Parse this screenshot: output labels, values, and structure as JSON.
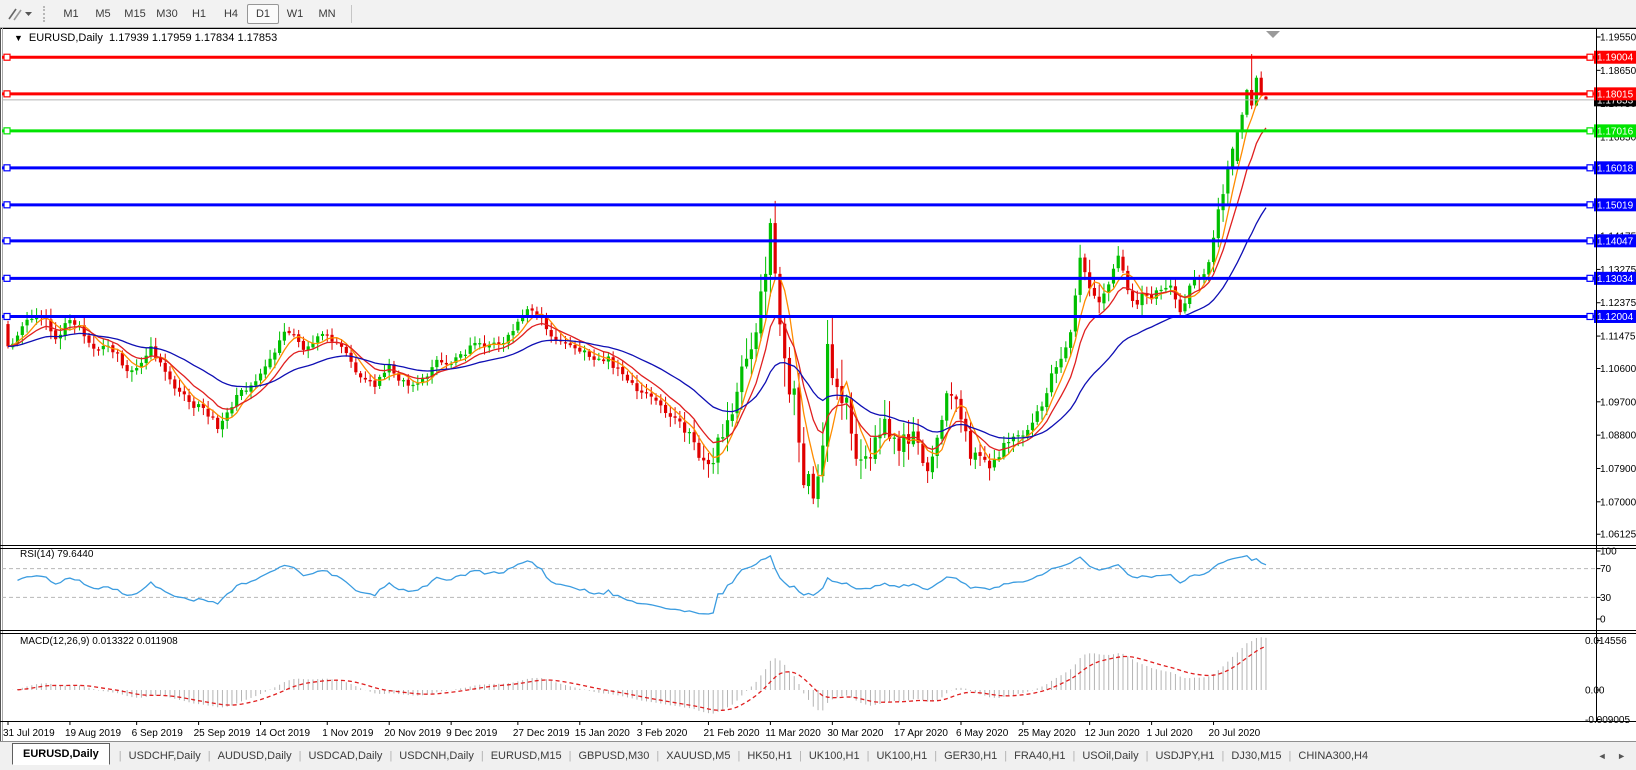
{
  "toolbar": {
    "timeframes": [
      "M1",
      "M5",
      "M15",
      "M30",
      "H1",
      "H4",
      "D1",
      "W1",
      "MN"
    ],
    "active": "D1"
  },
  "chart": {
    "title_symbol": "EURUSD,Daily",
    "title_ohlc": "1.17939 1.17959 1.17834 1.17853"
  },
  "chart_data": {
    "type": "candlestick",
    "symbol": "EURUSD",
    "timeframe": "Daily",
    "last_ohlc": {
      "open": 1.17939,
      "high": 1.17959,
      "low": 1.17834,
      "close": 1.17853
    },
    "num_candles": 265,
    "candle_up_color": "#00bf00",
    "candle_down_color": "#e00000",
    "price_axis_labels": [
      1.1955,
      1.1865,
      1.1775,
      1.1685,
      1.1595,
      1.15075,
      1.14175,
      1.13275,
      1.12375,
      1.11475,
      1.106,
      1.097,
      1.088,
      1.079,
      1.07,
      1.06125
    ],
    "horizontal_lines": [
      {
        "price": 1.19004,
        "color": "#ff0000"
      },
      {
        "price": 1.18015,
        "color": "#ff0000"
      },
      {
        "price": 1.17016,
        "color": "#00e400"
      },
      {
        "price": 1.16018,
        "color": "#0000ff"
      },
      {
        "price": 1.15019,
        "color": "#0000ff"
      },
      {
        "price": 1.14047,
        "color": "#0000ff"
      },
      {
        "price": 1.13034,
        "color": "#0000ff"
      },
      {
        "price": 1.12004,
        "color": "#0000ff"
      }
    ],
    "current_price": {
      "value": 1.17853,
      "line_color": "#b4b4b4",
      "badge_color": "#000000"
    },
    "date_labels": [
      {
        "label": "31 Jul 2019",
        "index": 0
      },
      {
        "label": "19 Aug 2019",
        "index": 13
      },
      {
        "label": "6 Sep 2019",
        "index": 27
      },
      {
        "label": "25 Sep 2019",
        "index": 40
      },
      {
        "label": "14 Oct 2019",
        "index": 53
      },
      {
        "label": "1 Nov 2019",
        "index": 67
      },
      {
        "label": "20 Nov 2019",
        "index": 80
      },
      {
        "label": "9 Dec 2019",
        "index": 93
      },
      {
        "label": "27 Dec 2019",
        "index": 107
      },
      {
        "label": "15 Jan 2020",
        "index": 120
      },
      {
        "label": "3 Feb 2020",
        "index": 133
      },
      {
        "label": "21 Feb 2020",
        "index": 147
      },
      {
        "label": "11 Mar 2020",
        "index": 160
      },
      {
        "label": "30 Mar 2020",
        "index": 173
      },
      {
        "label": "17 Apr 2020",
        "index": 187
      },
      {
        "label": "6 May 2020",
        "index": 200
      },
      {
        "label": "25 May 2020",
        "index": 213
      },
      {
        "label": "12 Jun 2020",
        "index": 227
      },
      {
        "label": "1 Jul 2020",
        "index": 240
      },
      {
        "label": "20 Jul 2020",
        "index": 253
      }
    ],
    "price_path_anchors": [
      [
        0,
        1.1135
      ],
      [
        3,
        1.118
      ],
      [
        6,
        1.123
      ],
      [
        10,
        1.115
      ],
      [
        13,
        1.119
      ],
      [
        18,
        1.113
      ],
      [
        23,
        1.108
      ],
      [
        25,
        1.1035
      ],
      [
        30,
        1.1105
      ],
      [
        34,
        1.101
      ],
      [
        40,
        1.096
      ],
      [
        44,
        1.0905
      ],
      [
        48,
        1.098
      ],
      [
        53,
        1.103
      ],
      [
        58,
        1.115
      ],
      [
        62,
        1.112
      ],
      [
        67,
        1.1165
      ],
      [
        72,
        1.107
      ],
      [
        77,
        1.101
      ],
      [
        80,
        1.106
      ],
      [
        85,
        1.1005
      ],
      [
        90,
        1.108
      ],
      [
        93,
        1.106
      ],
      [
        98,
        1.113
      ],
      [
        103,
        1.112
      ],
      [
        107,
        1.118
      ],
      [
        110,
        1.122
      ],
      [
        114,
        1.116
      ],
      [
        120,
        1.11
      ],
      [
        126,
        1.109
      ],
      [
        130,
        1.102
      ],
      [
        133,
        1.1
      ],
      [
        138,
        1.094
      ],
      [
        143,
        1.087
      ],
      [
        147,
        1.08
      ],
      [
        150,
        1.089
      ],
      [
        153,
        1.0985
      ],
      [
        156,
        1.11
      ],
      [
        158,
        1.13
      ],
      [
        160,
        1.145
      ],
      [
        161,
        1.128
      ],
      [
        163,
        1.109
      ],
      [
        165,
        1.099
      ],
      [
        167,
        1.082
      ],
      [
        169,
        1.069
      ],
      [
        171,
        1.079
      ],
      [
        172,
        1.11
      ],
      [
        174,
        1.1035
      ],
      [
        176,
        1.095
      ],
      [
        178,
        1.087
      ],
      [
        181,
        1.081
      ],
      [
        184,
        1.089
      ],
      [
        187,
        1.087
      ],
      [
        190,
        1.088
      ],
      [
        193,
        1.0795
      ],
      [
        197,
        1.099
      ],
      [
        199,
        1.0945
      ],
      [
        202,
        1.082
      ],
      [
        206,
        1.08
      ],
      [
        209,
        1.0845
      ],
      [
        212,
        1.089
      ],
      [
        215,
        1.09
      ],
      [
        218,
        1.099
      ],
      [
        221,
        1.11
      ],
      [
        223,
        1.118
      ],
      [
        225,
        1.139
      ],
      [
        227,
        1.129
      ],
      [
        229,
        1.125
      ],
      [
        231,
        1.128
      ],
      [
        233,
        1.134
      ],
      [
        236,
        1.122
      ],
      [
        238,
        1.125
      ],
      [
        240,
        1.1235
      ],
      [
        242,
        1.1275
      ],
      [
        244,
        1.13
      ],
      [
        246,
        1.123
      ],
      [
        248,
        1.129
      ],
      [
        251,
        1.133
      ],
      [
        253,
        1.141
      ],
      [
        255,
        1.153
      ],
      [
        257,
        1.164
      ],
      [
        258,
        1.17
      ],
      [
        264,
        1.179
      ]
    ],
    "volatility_anchors": [
      [
        0,
        0.0035
      ],
      [
        30,
        0.0028
      ],
      [
        70,
        0.0024
      ],
      [
        110,
        0.0022
      ],
      [
        135,
        0.0026
      ],
      [
        145,
        0.004
      ],
      [
        152,
        0.0065
      ],
      [
        158,
        0.0095
      ],
      [
        164,
        0.011
      ],
      [
        170,
        0.0115
      ],
      [
        176,
        0.0085
      ],
      [
        185,
        0.006
      ],
      [
        195,
        0.0048
      ],
      [
        205,
        0.0038
      ],
      [
        215,
        0.0033
      ],
      [
        225,
        0.004
      ],
      [
        235,
        0.0033
      ],
      [
        245,
        0.0028
      ],
      [
        255,
        0.004
      ],
      [
        264,
        0.003
      ]
    ],
    "tail_candles": {
      "start_index": 258,
      "ohlc": [
        [
          1.162,
          1.1702,
          1.1612,
          1.1698
        ],
        [
          1.1698,
          1.1752,
          1.168,
          1.1745
        ],
        [
          1.1745,
          1.1815,
          1.1738,
          1.1812
        ],
        [
          1.1812,
          1.1909,
          1.176,
          1.177
        ],
        [
          1.177,
          1.1851,
          1.1768,
          1.1845
        ],
        [
          1.1845,
          1.1862,
          1.1795,
          1.1805
        ],
        [
          1.17939,
          1.17959,
          1.17834,
          1.17853
        ]
      ]
    },
    "moving_averages": [
      {
        "name": "fast",
        "type": "sma",
        "period": 5,
        "color": "#ff8c00"
      },
      {
        "name": "mid",
        "type": "ema",
        "period": 10,
        "color": "#e02020"
      },
      {
        "name": "slow",
        "type": "ema",
        "period": 30,
        "color": "#0f0fb4"
      }
    ],
    "rsi": {
      "label": "RSI(14) 79.6440",
      "period": 14,
      "current": 79.644,
      "axis_labels": [
        100,
        70,
        30,
        0
      ],
      "levels": [
        70,
        30
      ],
      "line_color": "#3b9ce0"
    },
    "macd": {
      "label": "MACD(12,26,9) 0.013322 0.011908",
      "fast": 12,
      "slow": 26,
      "signal": 9,
      "current_macd": 0.013322,
      "current_signal": 0.011908,
      "axis_labels": [
        {
          "text": "0.014556",
          "value": 0.014556
        },
        {
          "text": "0.00",
          "value": 0
        },
        {
          "text": "-0.009005",
          "value": -0.009005
        }
      ],
      "histogram_color": "#b4b4b4",
      "signal_color": "#e02020"
    }
  },
  "tabs": {
    "items": [
      "EURUSD,Daily",
      "USDCHF,Daily",
      "AUDUSD,Daily",
      "USDCAD,Daily",
      "USDCNH,Daily",
      "EURUSD,M15",
      "GBPUSD,M30",
      "XAUUSD,M5",
      "HK50,H1",
      "UK100,H1",
      "UK100,H1",
      "GER30,H1",
      "FRA40,H1",
      "USOil,Daily",
      "USDJPY,H1",
      "DJ30,M15",
      "CHINA300,H4"
    ],
    "active_index": 0,
    "scroll_left": "◄",
    "scroll_right": "►"
  }
}
